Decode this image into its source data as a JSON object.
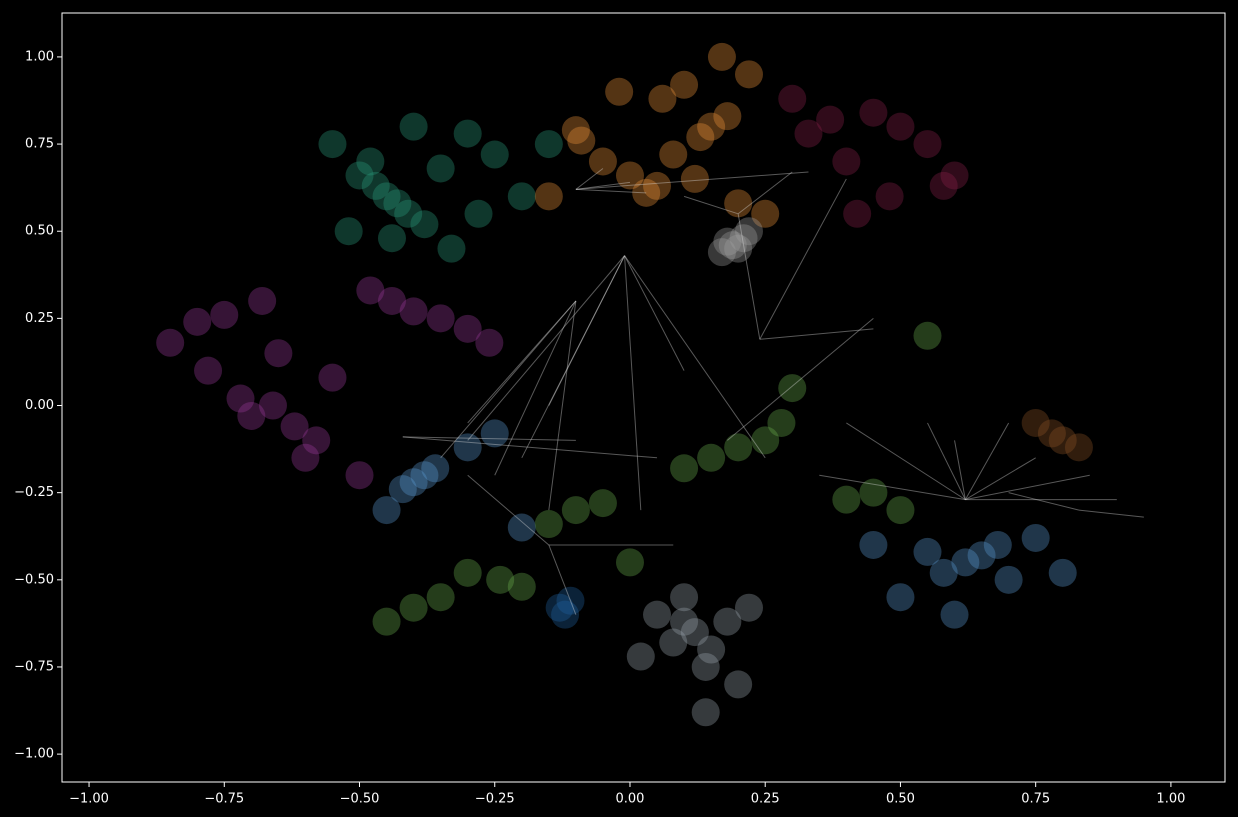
{
  "chart_data": {
    "type": "scatter",
    "xlim": [
      -1.05,
      1.1
    ],
    "ylim": [
      -1.08,
      1.126
    ],
    "xticks": [
      {
        "value": -1,
        "label": "−1.00"
      },
      {
        "value": -0.75,
        "label": "−0.75"
      },
      {
        "value": -0.5,
        "label": "−0.50"
      },
      {
        "value": -0.25,
        "label": "−0.25"
      },
      {
        "value": 0,
        "label": "0.00"
      },
      {
        "value": 0.25,
        "label": "0.25"
      },
      {
        "value": 0.5,
        "label": "0.50"
      },
      {
        "value": 0.75,
        "label": "0.75"
      },
      {
        "value": 1,
        "label": "1.00"
      }
    ],
    "yticks": [
      {
        "value": -1,
        "label": "−1.00"
      },
      {
        "value": -0.75,
        "label": "−0.75"
      },
      {
        "value": -0.5,
        "label": "−0.50"
      },
      {
        "value": -0.25,
        "label": "−0.25"
      },
      {
        "value": 0,
        "label": "0.00"
      },
      {
        "value": 0.25,
        "label": "0.25"
      },
      {
        "value": 0.5,
        "label": "0.50"
      },
      {
        "value": 0.75,
        "label": "0.75"
      },
      {
        "value": 1,
        "label": "1.00"
      }
    ],
    "series": [
      {
        "color": "#2a9d7f",
        "x": [
          -0.47,
          -0.45,
          -0.43,
          -0.5,
          -0.41,
          -0.48,
          -0.38,
          -0.55,
          -0.3,
          -0.25,
          -0.35,
          -0.2,
          -0.15,
          -0.52,
          -0.4,
          -0.28,
          -0.33,
          -0.44
        ],
        "y": [
          0.63,
          0.6,
          0.58,
          0.66,
          0.55,
          0.7,
          0.52,
          0.75,
          0.78,
          0.72,
          0.68,
          0.6,
          0.75,
          0.5,
          0.8,
          0.55,
          0.45,
          0.48
        ]
      },
      {
        "color": "#f0953a",
        "x": [
          -0.1,
          -0.09,
          0.03,
          0.05,
          0.0,
          0.15,
          0.13,
          0.18,
          -0.05,
          0.08,
          0.1,
          0.2,
          0.25,
          0.06,
          -0.02,
          0.12,
          -0.15,
          0.22,
          0.17
        ],
        "y": [
          0.79,
          0.76,
          0.61,
          0.63,
          0.66,
          0.8,
          0.77,
          0.83,
          0.7,
          0.72,
          0.92,
          0.58,
          0.55,
          0.88,
          0.9,
          0.65,
          0.6,
          0.95,
          1.0
        ]
      },
      {
        "color": "#8a1f4a",
        "x": [
          0.33,
          0.4,
          0.45,
          0.5,
          0.58,
          0.6,
          0.42,
          0.37,
          0.55,
          0.48,
          0.3
        ],
        "y": [
          0.78,
          0.7,
          0.84,
          0.8,
          0.63,
          0.66,
          0.55,
          0.82,
          0.75,
          0.6,
          0.88
        ]
      },
      {
        "color": "#a0a0a0",
        "x": [
          0.19,
          0.2,
          0.18,
          0.21,
          0.17,
          0.22
        ],
        "y": [
          0.46,
          0.45,
          0.47,
          0.48,
          0.44,
          0.5
        ]
      },
      {
        "color": "#9b3a9b",
        "x": [
          -0.7,
          -0.66,
          -0.72,
          -0.62,
          -0.58,
          -0.75,
          -0.8,
          -0.68,
          -0.48,
          -0.44,
          -0.4,
          -0.35,
          -0.26,
          -0.3,
          -0.55,
          -0.65,
          -0.78,
          -0.6,
          -0.85,
          -0.5
        ],
        "y": [
          -0.03,
          0.0,
          0.02,
          -0.06,
          -0.1,
          0.26,
          0.24,
          0.3,
          0.33,
          0.3,
          0.27,
          0.25,
          0.18,
          0.22,
          0.08,
          0.15,
          0.1,
          -0.15,
          0.18,
          -0.2
        ]
      },
      {
        "color": "#5b9bd5",
        "x": [
          -0.4,
          -0.38,
          -0.42,
          -0.36,
          -0.3,
          -0.25,
          -0.45,
          0.65,
          0.62,
          0.68,
          0.58,
          0.55,
          0.7,
          0.75,
          0.5,
          0.45,
          0.6,
          0.8,
          -0.2
        ],
        "y": [
          -0.22,
          -0.2,
          -0.24,
          -0.18,
          -0.12,
          -0.08,
          -0.3,
          -0.43,
          -0.45,
          -0.4,
          -0.48,
          -0.42,
          -0.5,
          -0.38,
          -0.55,
          -0.4,
          -0.6,
          -0.48,
          -0.35
        ]
      },
      {
        "color": "#6ab04c",
        "x": [
          -0.2,
          -0.24,
          -0.3,
          -0.35,
          -0.4,
          -0.1,
          -0.05,
          -0.15,
          0.15,
          0.2,
          0.28,
          0.1,
          0.25,
          0.4,
          0.45,
          0.5,
          -0.45,
          0.3,
          0.55,
          0.0
        ],
        "y": [
          -0.52,
          -0.5,
          -0.48,
          -0.55,
          -0.58,
          -0.3,
          -0.28,
          -0.34,
          -0.15,
          -0.12,
          -0.05,
          -0.18,
          -0.1,
          -0.27,
          -0.25,
          -0.3,
          -0.62,
          0.05,
          0.2,
          -0.45
        ]
      },
      {
        "color": "#9aa5b0",
        "x": [
          0.12,
          0.1,
          0.15,
          0.08,
          0.05,
          0.18,
          0.14,
          0.2,
          0.02,
          0.1,
          0.14,
          0.22
        ],
        "y": [
          -0.65,
          -0.62,
          -0.7,
          -0.68,
          -0.6,
          -0.62,
          -0.75,
          -0.8,
          -0.72,
          -0.55,
          -0.88,
          -0.58
        ]
      },
      {
        "color": "#8b5424",
        "x": [
          0.8,
          0.78,
          0.83,
          0.75
        ],
        "y": [
          -0.1,
          -0.08,
          -0.12,
          -0.05
        ]
      },
      {
        "color": "#2060a0",
        "x": [
          -0.13,
          -0.12,
          -0.11
        ],
        "y": [
          -0.58,
          -0.6,
          -0.56
        ]
      }
    ],
    "edges": {
      "x0": [
        -0.1,
        -0.1,
        -0.1,
        -0.1,
        -0.01,
        -0.01,
        -0.01,
        -0.01,
        -0.01,
        -0.01,
        -0.1,
        -0.1,
        -0.1,
        -0.1,
        0.62,
        0.62,
        0.62,
        0.62,
        0.62,
        0.62,
        0.62,
        0.62,
        0.83,
        0.83,
        -0.42,
        -0.42,
        -0.15,
        -0.15,
        -0.15,
        0.24,
        0.24,
        0.24,
        0.2,
        0.2,
        0.18
      ],
      "y0": [
        0.62,
        0.62,
        0.62,
        0.62,
        0.43,
        0.43,
        0.43,
        0.43,
        0.43,
        0.43,
        0.3,
        0.3,
        0.3,
        0.3,
        -0.27,
        -0.27,
        -0.27,
        -0.27,
        -0.27,
        -0.27,
        -0.27,
        -0.27,
        -0.3,
        -0.3,
        -0.09,
        -0.09,
        -0.4,
        -0.4,
        -0.4,
        0.19,
        0.19,
        0.19,
        0.55,
        0.55,
        -0.1
      ],
      "x1": [
        0.03,
        0.0,
        -0.05,
        0.33,
        -0.3,
        -0.2,
        0.02,
        0.1,
        -0.15,
        0.25,
        -0.35,
        -0.3,
        -0.25,
        -0.15,
        0.35,
        0.75,
        0.85,
        0.55,
        0.9,
        0.6,
        0.7,
        0.4,
        0.95,
        0.7,
        -0.1,
        0.05,
        -0.3,
        -0.1,
        0.08,
        0.2,
        0.4,
        0.45,
        0.3,
        0.1,
        0.45
      ],
      "y1": [
        0.61,
        0.64,
        0.68,
        0.67,
        -0.1,
        -0.15,
        -0.3,
        0.1,
        0.0,
        -0.15,
        -0.15,
        -0.05,
        -0.2,
        -0.3,
        -0.2,
        -0.15,
        -0.2,
        -0.05,
        -0.27,
        -0.1,
        -0.05,
        -0.05,
        -0.32,
        -0.25,
        -0.1,
        -0.15,
        -0.2,
        -0.6,
        -0.4,
        0.55,
        0.65,
        0.22,
        0.67,
        0.6,
        0.25
      ]
    }
  }
}
